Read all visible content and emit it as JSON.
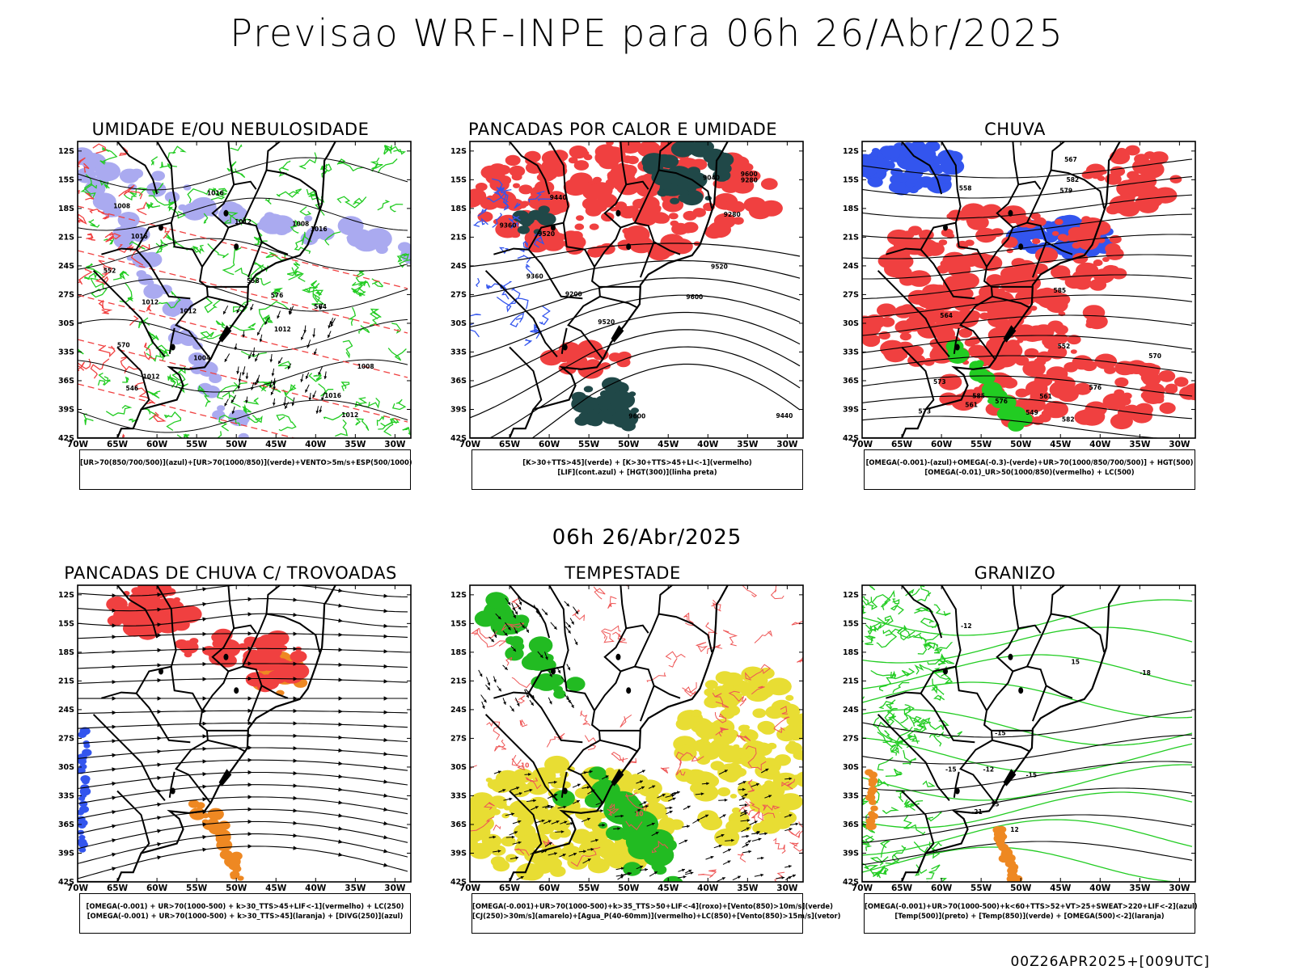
{
  "title": "Previsao WRF-INPE  para 06h 26/Abr/2025",
  "mid_date": "06h 26/Abr/2025",
  "footer": "00Z26APR2025+[009UTC]",
  "lat_labels": [
    "12S",
    "15S",
    "18S",
    "21S",
    "24S",
    "27S",
    "30S",
    "33S",
    "36S",
    "39S",
    "42S"
  ],
  "lon_labels": [
    "70W",
    "65W",
    "60W",
    "55W",
    "50W",
    "45W",
    "40W",
    "35W",
    "30W"
  ],
  "colors": {
    "red": "#f04040",
    "green": "#22cc22",
    "blue": "#3355ee",
    "lavender": "#aaaaf0",
    "orange": "#ee8822",
    "yellow": "#e8dd33",
    "darkteal": "#204848",
    "salmon": "#ee5555"
  },
  "panels": [
    {
      "id": "umidade",
      "title": "UMIDADE E/OU NEBULOSIDADE",
      "legend": [
        "[UR>70(850/700/500)](azul)+[UR>70(1000/850)](verde)+VENTO>5m/s+ESP(500/1000)"
      ],
      "contour_labels": [
        "1012",
        "1012",
        "1012",
        "1008",
        "1008",
        "1016",
        "1012",
        "1012",
        "1016",
        "1012",
        "1008",
        "1016",
        "1004",
        "1016",
        "576",
        "570",
        "564",
        "558",
        "552",
        "546"
      ]
    },
    {
      "id": "pancadas-calor",
      "title": "PANCADAS POR CALOR E UMIDADE",
      "legend": [
        "[K>30+TTS>45](verde) + [K>30+TTS>45+LI<-1](vermelho)",
        "[LIF](cont.azul) + [HGT(300)](linha preta)"
      ],
      "contour_labels": [
        "9600",
        "9600",
        "9600",
        "9520",
        "9520",
        "9520",
        "9440",
        "9440",
        "9360",
        "9360",
        "9280",
        "9280",
        "9200",
        "9040"
      ]
    },
    {
      "id": "chuva",
      "title": "CHUVA",
      "legend": [
        "[OMEGA(-0.001)-(azul)+OMEGA(-0.3)-(verde)+UR>70(1000/850/700/500)] + HGT(500)",
        "[OMEGA(-0.01)_UR>50(1000/850)(vermelho) + LC(500)"
      ],
      "contour_labels": [
        "585",
        "585",
        "582",
        "582",
        "579",
        "576",
        "576",
        "573",
        "573",
        "570",
        "567",
        "564",
        "561",
        "561",
        "558",
        "552",
        "549"
      ]
    },
    {
      "id": "pancadas-trovoadas",
      "title": "PANCADAS DE CHUVA C/ TROVOADAS",
      "legend": [
        "[OMEGA(-0.001) + UR>70(1000-500) + k>30_TTS>45+LIF<-1](vermelho) + LC(250)",
        "[OMEGA(-0.001) + UR>70(1000-500) + k>30_TTS>45](laranja) + [DIVG(250)](azul)"
      ],
      "contour_labels": []
    },
    {
      "id": "tempestade",
      "title": "TEMPESTADE",
      "legend": [
        "[OMEGA(-0.001)+UR>70(1000-500)+k>35_TTS>50+LIF<-4](roxo)+[Vento(850)>10m/s](verde)",
        "[CJ(250)>30m/s](amarelo)+[Agua_P(40-60mm)](vermelho)+LC(850)+[Vento(850)>15m/s](vetor)"
      ],
      "contour_labels": [
        "10",
        "10"
      ]
    },
    {
      "id": "granizo",
      "title": "GRANIZO",
      "legend": [
        "[OMEGA(-0.001)+UR>70(1000-500)+k<60+TTS>52+VT>25+SWEAT>220+LIF<-2](azul)",
        "[Temp(500)](preto) + [Temp(850)](verde) + [OMEGA(500)<-2](laranja)"
      ],
      "contour_labels": [
        "-12",
        "-12",
        "-15",
        "-15",
        "-15",
        "-18",
        "-21",
        "15",
        "15",
        "12"
      ]
    }
  ]
}
